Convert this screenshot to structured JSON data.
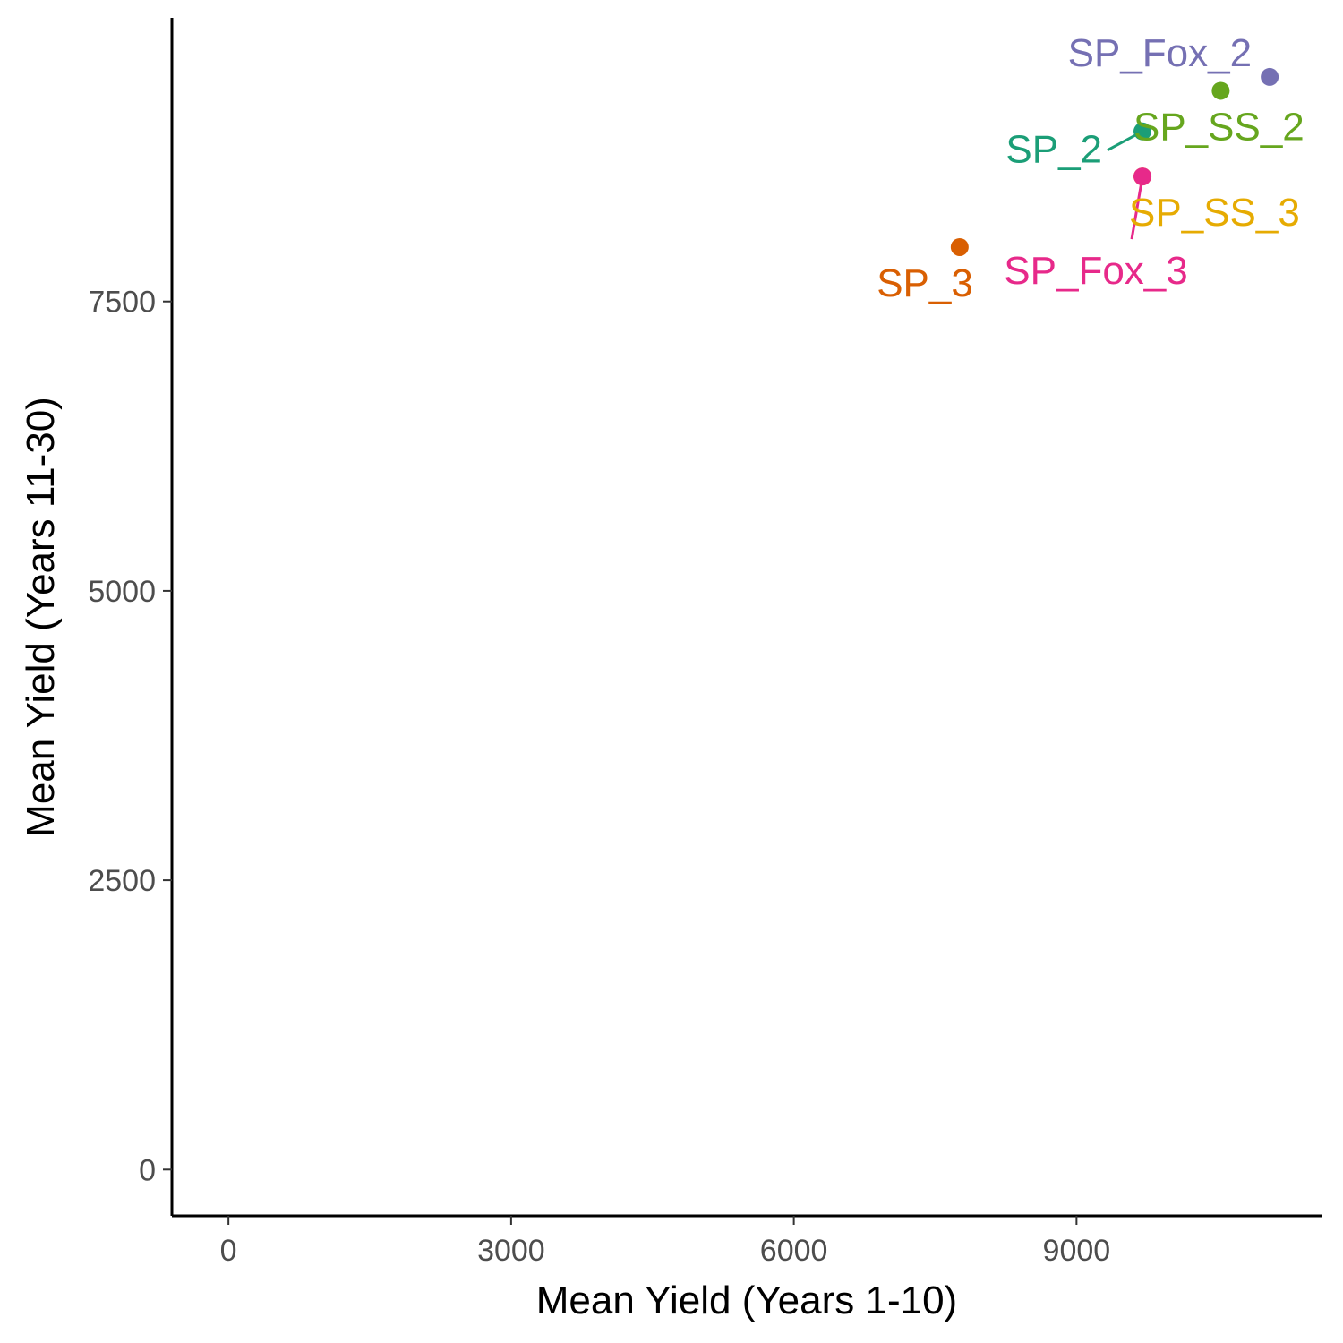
{
  "chart_data": {
    "type": "scatter",
    "title": "",
    "xlabel": "Mean Yield (Years 1-10)",
    "ylabel": "Mean Yield (Years 11-30)",
    "xlim": [
      -600,
      11600
    ],
    "ylim": [
      -400,
      9950
    ],
    "xticks": [
      0,
      3000,
      6000,
      9000
    ],
    "yticks": [
      0,
      2500,
      5000,
      7500
    ],
    "xtick_labels": [
      "0",
      "3000",
      "6000",
      "9000"
    ],
    "ytick_labels": [
      "0",
      "2500",
      "5000",
      "7500"
    ],
    "grid": false,
    "legend": "none",
    "points": [
      {
        "label": "SP_Fox_2",
        "x": 11050,
        "y": 9440,
        "color": "#7570b3",
        "label_anchor": "end",
        "label_dx": -20,
        "label_dy": -12,
        "leader": false
      },
      {
        "label": "SP_SS_2",
        "x": 10530,
        "y": 9320,
        "color": "#66a61e",
        "label_anchor": "middle",
        "label_dx": -2,
        "label_dy": 55,
        "leader": false
      },
      {
        "label": "SP_2",
        "x": 9700,
        "y": 8970,
        "color": "#1b9e77",
        "label_anchor": "end",
        "label_dx": -45,
        "label_dy": 35,
        "leader": true
      },
      {
        "label": "SP_SS_3",
        "x": 9700,
        "y": 8580,
        "color": "#e6ab02",
        "label_anchor": "start",
        "label_dx": -15,
        "label_dy": 55,
        "leader": false
      },
      {
        "label": "SP_Fox_3",
        "x": 9700,
        "y": 8580,
        "color": "#e7298a",
        "label_anchor": "middle",
        "label_dx": -52,
        "label_dy": 120,
        "leader": true
      },
      {
        "label": "SP_3",
        "x": 7760,
        "y": 7970,
        "color": "#d95f02",
        "label_anchor": "end",
        "label_dx": 15,
        "label_dy": 55,
        "leader": false
      }
    ]
  }
}
